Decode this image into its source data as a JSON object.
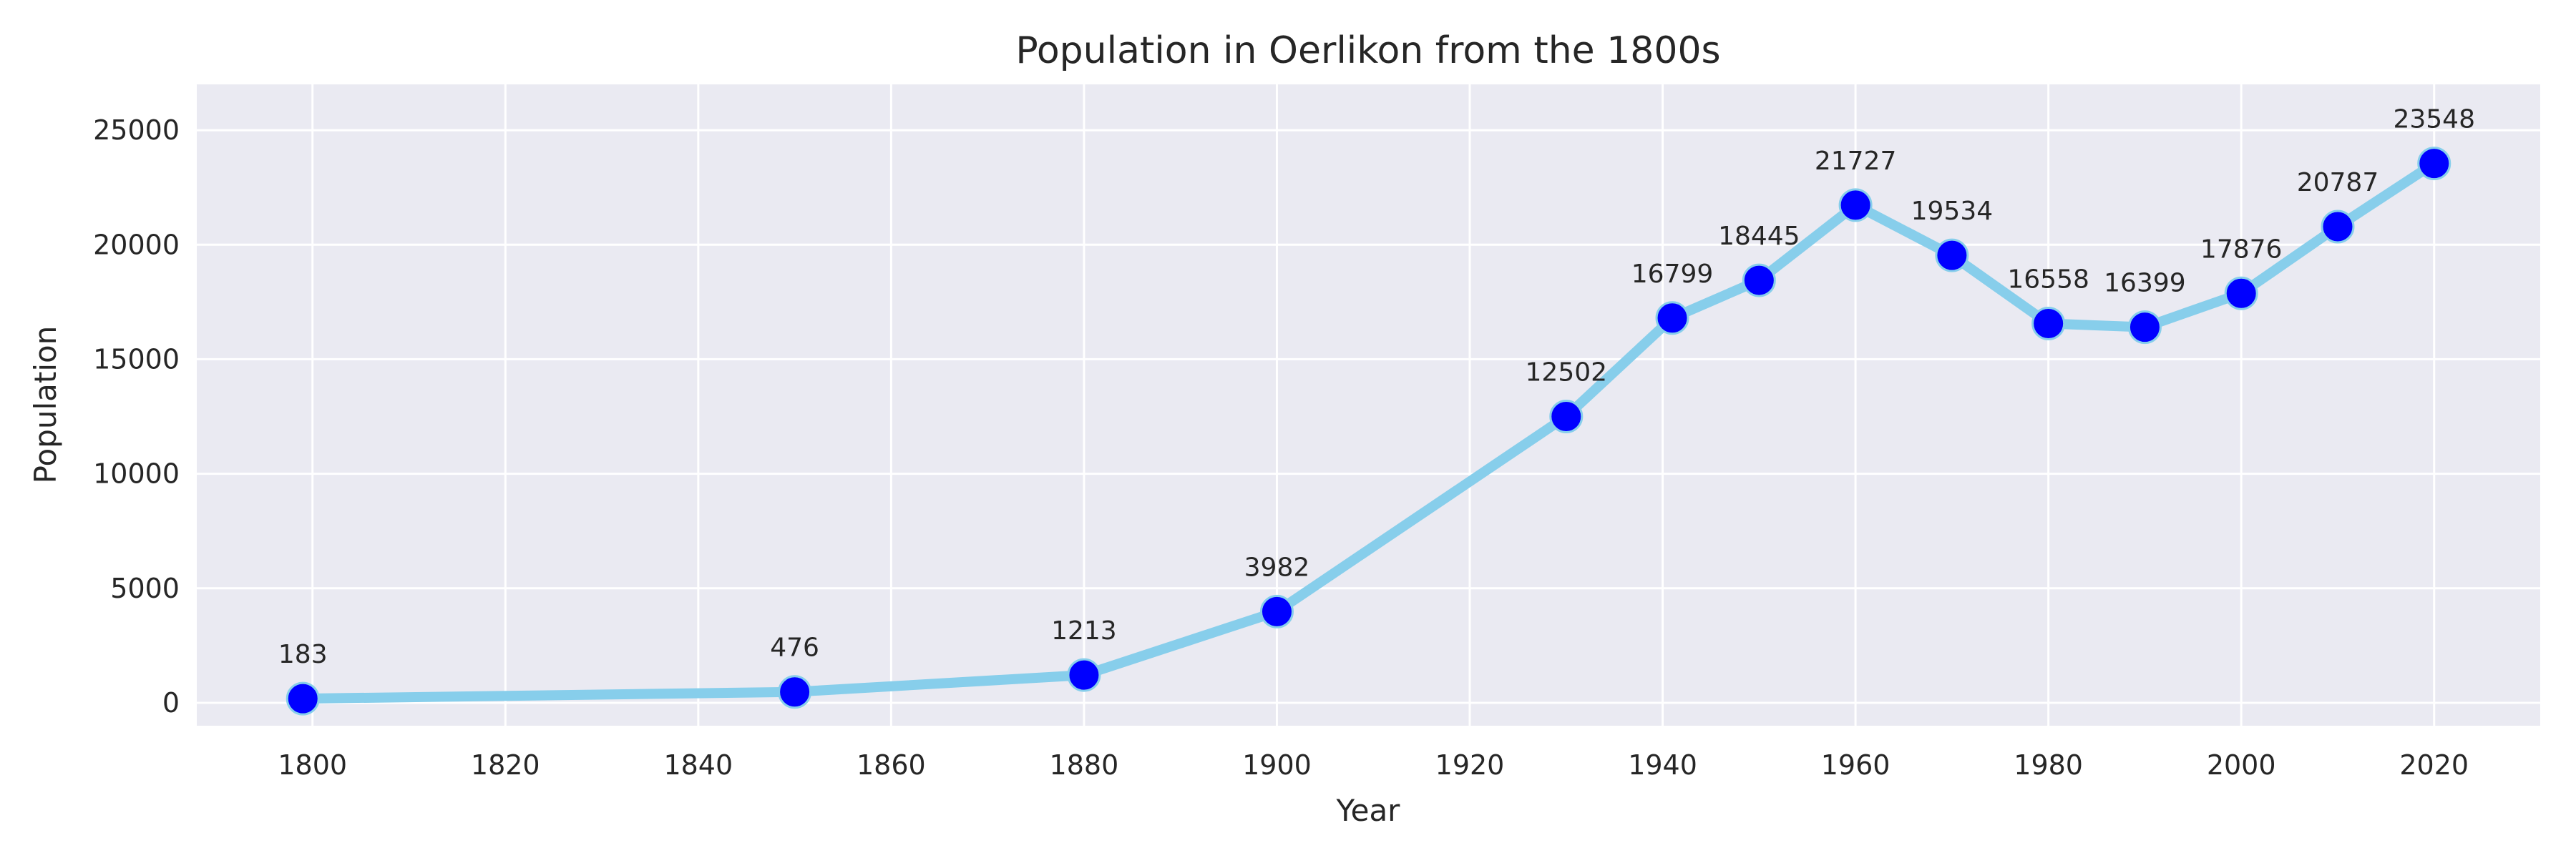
{
  "chart_data": {
    "type": "line",
    "title": "Population in Oerlikon from the 1800s",
    "xlabel": "Year",
    "ylabel": "Population",
    "xlim": [
      1788,
      2031
    ],
    "ylim": [
      -1000,
      27000
    ],
    "x_ticks": [
      1800,
      1820,
      1840,
      1860,
      1880,
      1900,
      1920,
      1940,
      1960,
      1980,
      2000,
      2020
    ],
    "y_ticks": [
      0,
      5000,
      10000,
      15000,
      20000,
      25000
    ],
    "grid": true,
    "series": [
      {
        "x": [
          1799,
          1850,
          1880,
          1900,
          1930,
          1941,
          1950,
          1960,
          1970,
          1980,
          1990,
          2000,
          2010,
          2020
        ],
        "y": [
          183,
          476,
          1213,
          3982,
          12502,
          16799,
          18445,
          21727,
          19534,
          16558,
          16399,
          17876,
          20787,
          23548
        ],
        "line_color": "#87ceeb",
        "marker_color": "#0000ff",
        "marker_edge_color": "#87ceeb"
      }
    ]
  }
}
